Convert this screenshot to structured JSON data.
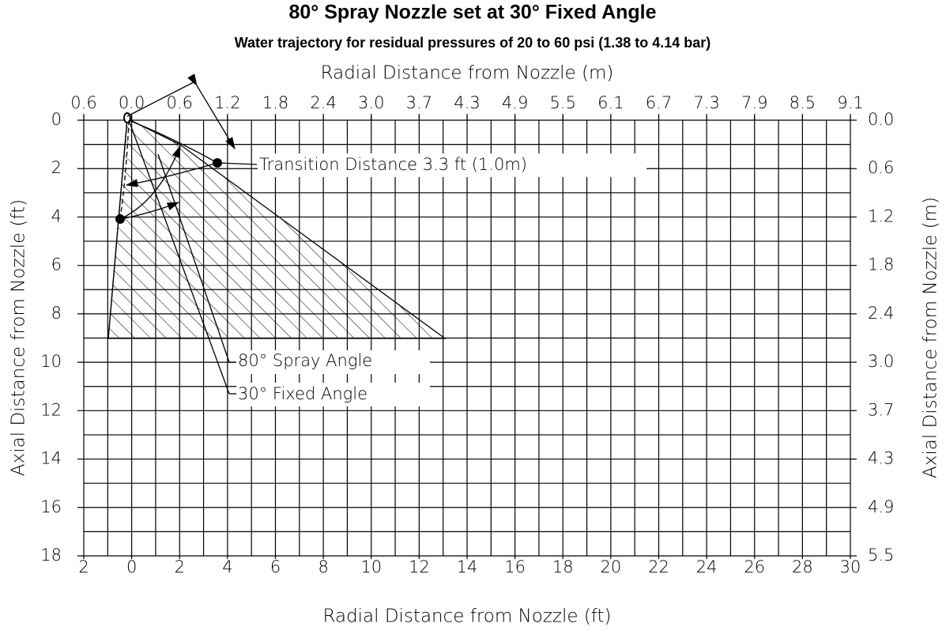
{
  "chart_data": {
    "type": "spray-diagram",
    "title": "80° Spray Nozzle set at 30° Fixed Angle",
    "subtitle": "Water trajectory for residual pressures of 20 to 60 psi (1.38 to 4.14 bar)",
    "x_label": "Radial Distance from Nozzle (ft)",
    "x2_label": "Radial Distance from Nozzle (m)",
    "y_label": "Axial Distance from Nozzle (ft)",
    "y2_label": "Axial Distance from Nozzle (m)",
    "xlim": [
      -2,
      30
    ],
    "xticks": [
      {
        "value": -2,
        "label": "2"
      },
      0,
      2,
      4,
      6,
      8,
      10,
      12,
      14,
      16,
      18,
      20,
      22,
      24,
      26,
      28,
      30
    ],
    "x2lim": [
      -0.6096,
      9.144
    ],
    "x2ticks": [
      {
        "value": -0.6096,
        "label": "0.6"
      },
      {
        "value": 0,
        "label": "0.0"
      },
      {
        "value": 0.6096,
        "label": "0.6"
      },
      {
        "value": 1.2192,
        "label": "1.2"
      },
      {
        "value": 1.8288,
        "label": "1.8"
      },
      {
        "value": 2.4384,
        "label": "2.4"
      },
      {
        "value": 3.048,
        "label": "3.0"
      },
      {
        "value": 3.6576,
        "label": "3.7"
      },
      {
        "value": 4.2672,
        "label": "4.3"
      },
      {
        "value": 4.8768,
        "label": "4.9"
      },
      {
        "value": 5.4864,
        "label": "5.5"
      },
      {
        "value": 6.096,
        "label": "6.1"
      },
      {
        "value": 6.7056,
        "label": "6.7"
      },
      {
        "value": 7.3152,
        "label": "7.3"
      },
      {
        "value": 7.9248,
        "label": "7.9"
      },
      {
        "value": 8.5344,
        "label": "8.5"
      },
      {
        "value": 9.144,
        "label": "9.1"
      }
    ],
    "ylim": [
      0,
      18
    ],
    "yticks": [
      0,
      2,
      4,
      6,
      8,
      10,
      12,
      14,
      16,
      18
    ],
    "y_inverted": true,
    "y2lim": [
      0,
      5.4864
    ],
    "y2ticks": [
      {
        "value": 0,
        "label": "0.0"
      },
      {
        "value": 0.6096,
        "label": "0.6"
      },
      {
        "value": 1.2192,
        "label": "1.2"
      },
      {
        "value": 1.8288,
        "label": "1.8"
      },
      {
        "value": 2.4384,
        "label": "2.4"
      },
      {
        "value": 3.048,
        "label": "3.0"
      },
      {
        "value": 3.6576,
        "label": "3.7"
      },
      {
        "value": 4.2672,
        "label": "4.3"
      },
      {
        "value": 4.8768,
        "label": "4.9"
      },
      {
        "value": 5.4864,
        "label": "5.5"
      }
    ],
    "grid": true,
    "annotations": [
      "Transition Distance 3.3 ft (1.0m)",
      "80° Spray Angle",
      "30° Fixed Angle"
    ]
  }
}
